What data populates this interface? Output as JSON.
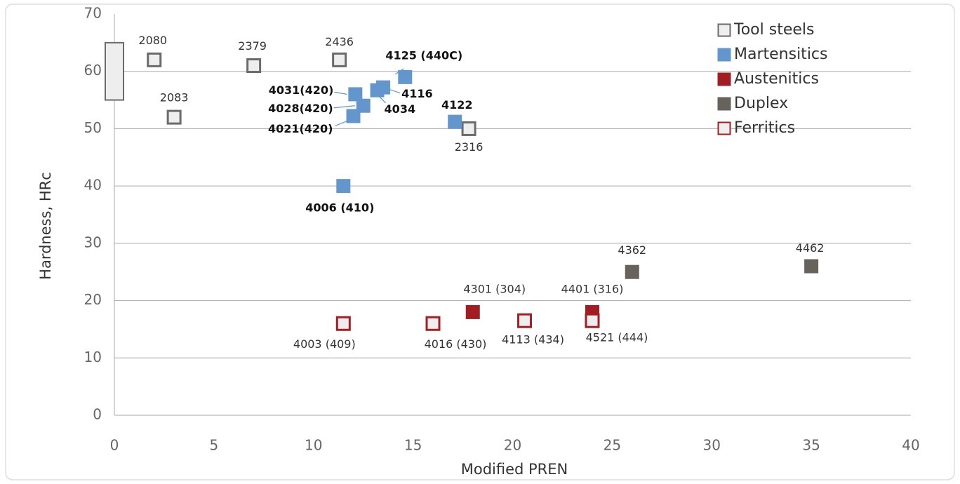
{
  "chart_data": {
    "type": "scatter",
    "xlabel": "Modified PREN",
    "ylabel": "Hardness, HRc",
    "xlim": [
      0,
      40
    ],
    "xticks": [
      0,
      5,
      10,
      15,
      20,
      25,
      30,
      35,
      40
    ],
    "ylim": [
      0,
      70
    ],
    "yticks": [
      0,
      10,
      20,
      30,
      40,
      50,
      60,
      70
    ],
    "grid": true,
    "legend": "upper right",
    "series": [
      {
        "name": "Tool steels",
        "color": "#6b6b6b",
        "fill": "#eeeeee",
        "marker": "outline",
        "x": [
          2,
          3,
          7,
          11.3,
          17.8
        ],
        "values": [
          62,
          52,
          61,
          62,
          50
        ],
        "labels": [
          "2080",
          "2083",
          "2379",
          "2436",
          "2316"
        ],
        "range": {
          "x": 0,
          "low": 55,
          "high": 65
        }
      },
      {
        "name": "Martensitics",
        "color": "#6396cc",
        "marker": "filled",
        "bold_labels": true,
        "x": [
          14.6,
          12.1,
          13.5,
          12.5,
          13.2,
          12.0,
          17.1,
          11.5
        ],
        "values": [
          59,
          56,
          57.2,
          54,
          56.7,
          52.2,
          51.2,
          40
        ],
        "labels": [
          "4125 (440C)",
          "4031(420)",
          "4116",
          "4028(420)",
          "4034",
          "4021(420)",
          "4122",
          "4006 (410)"
        ]
      },
      {
        "name": "Austenitics",
        "color": "#a11d22",
        "marker": "filled",
        "x": [
          18,
          24
        ],
        "values": [
          18,
          18
        ],
        "labels": [
          "4301 (304)",
          "4401 (316)"
        ]
      },
      {
        "name": "Duplex",
        "color": "#67625c",
        "marker": "filled",
        "x": [
          26,
          35
        ],
        "values": [
          25,
          26
        ],
        "labels": [
          "4362",
          "4462"
        ]
      },
      {
        "name": "Ferritics",
        "color": "#a31f24",
        "fill": "#eeeeee",
        "marker": "outline",
        "x": [
          11.5,
          16,
          20.6,
          24
        ],
        "values": [
          16,
          16,
          16.5,
          16.5
        ],
        "labels": [
          "4003 (409)",
          "4016 (430)",
          "4113 (434)",
          "4521 (444)"
        ]
      }
    ]
  }
}
